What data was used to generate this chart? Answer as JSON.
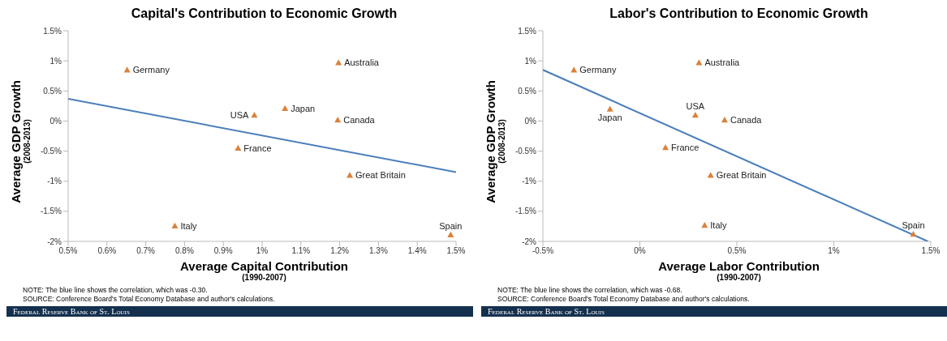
{
  "chart_data": [
    {
      "type": "scatter",
      "title": "Capital's Contribution to Economic Growth",
      "xlabel": "Average Capital Contribution\n(1990-2007)",
      "ylabel": "Average GDP Growth\n(2008-2013)",
      "xlim": [
        0.5,
        1.5
      ],
      "xticks": [
        {
          "value": 0.5,
          "label": "0.5%"
        },
        {
          "value": 0.6,
          "label": "0.6%"
        },
        {
          "value": 0.7,
          "label": "0.7%"
        },
        {
          "value": 0.8,
          "label": "0.8%"
        },
        {
          "value": 0.9,
          "label": "0.9%"
        },
        {
          "value": 1,
          "label": "1%"
        },
        {
          "value": 1.1,
          "label": "1.1%"
        },
        {
          "value": 1.2,
          "label": "1.2%"
        },
        {
          "value": 1.3,
          "label": "1.3%"
        },
        {
          "value": 1.4,
          "label": "1.4%"
        },
        {
          "value": 1.5,
          "label": "1.5%"
        }
      ],
      "ylim": [
        -2,
        1.5
      ],
      "yticks": [
        {
          "value": -2,
          "label": "-2%"
        },
        {
          "value": -1.5,
          "label": "-1.5%"
        },
        {
          "value": -1,
          "label": "-1%"
        },
        {
          "value": -0.5,
          "label": "-0.5%"
        },
        {
          "value": 0,
          "label": "0%"
        },
        {
          "value": 0.5,
          "label": "0.5%"
        },
        {
          "value": 1,
          "label": "1%"
        },
        {
          "value": 1.5,
          "label": "1.5%"
        }
      ],
      "grid": false,
      "legend": false,
      "marker": "triangle",
      "series": [
        {
          "type": "scatter",
          "color": "#d9823b",
          "x": [
            0.652,
            1.197,
            0.98,
            1.059,
            1.195,
            0.938,
            1.226,
            0.775,
            1.486
          ],
          "values": [
            0.85,
            0.97,
            0.1,
            0.21,
            0.02,
            -0.45,
            -0.9,
            -1.74,
            -1.89
          ]
        },
        {
          "type": "line",
          "color": "#4a7ebb",
          "marker": "none",
          "x": [
            0.5,
            1.5
          ],
          "values": [
            0.37,
            -0.85
          ]
        }
      ],
      "annotations": [
        {
          "text": "Germany",
          "x": 0.652,
          "y": 0.85
        },
        {
          "text": "Australia",
          "x": 1.197,
          "y": 0.97
        },
        {
          "text": "USA",
          "x": 0.98,
          "y": 0.1
        },
        {
          "text": "Japan",
          "x": 1.059,
          "y": 0.21
        },
        {
          "text": "Canada",
          "x": 1.195,
          "y": 0.02
        },
        {
          "text": "France",
          "x": 0.938,
          "y": -0.45
        },
        {
          "text": "Great Britain",
          "x": 1.226,
          "y": -0.9
        },
        {
          "text": "Italy",
          "x": 0.775,
          "y": -1.74
        },
        {
          "text": "Spain",
          "x": 1.486,
          "y": -1.89
        },
        "NOTE: The blue line shows the correlation, which was -0.30.",
        "SOURCE: Conference Board's Total Economy Database and author's calculations.",
        "Federal Reserve Bank of St. Louis"
      ]
    },
    {
      "type": "scatter",
      "title": "Labor's Contribution to Economic Growth",
      "xlabel": "Average Labor Contribution\n(1990-2007)",
      "ylabel": "Average GDP Growth\n(2008-2013)",
      "xlim": [
        -0.5,
        1.5
      ],
      "xticks": [
        {
          "value": -0.5,
          "label": "-0.5%"
        },
        {
          "value": 0,
          "label": "0%"
        },
        {
          "value": 0.5,
          "label": "0.5%"
        },
        {
          "value": 1,
          "label": "1%"
        },
        {
          "value": 1.5,
          "label": "1.5%"
        }
      ],
      "ylim": [
        -2,
        1.5
      ],
      "yticks": [
        {
          "value": -2,
          "label": "-2%"
        },
        {
          "value": -1.5,
          "label": "-1.5%"
        },
        {
          "value": -1,
          "label": "-1%"
        },
        {
          "value": -0.5,
          "label": "-0.5%"
        },
        {
          "value": 0,
          "label": "0%"
        },
        {
          "value": 0.5,
          "label": "0.5%"
        },
        {
          "value": 1,
          "label": "1%"
        },
        {
          "value": 1.5,
          "label": "1.5%"
        }
      ],
      "grid": false,
      "legend": false,
      "marker": "triangle",
      "series": [
        {
          "type": "scatter",
          "color": "#d9823b",
          "x": [
            -0.34,
            0.305,
            0.286,
            -0.154,
            0.437,
            0.132,
            0.365,
            0.334,
            1.41
          ],
          "values": [
            0.85,
            0.97,
            0.1,
            0.2,
            0.02,
            -0.44,
            -0.9,
            -1.73,
            -1.88
          ]
        },
        {
          "type": "line",
          "color": "#4a7ebb",
          "marker": "none",
          "x": [
            -0.5,
            1.485
          ],
          "values": [
            0.85,
            -2
          ]
        }
      ],
      "annotations": [
        {
          "text": "Germany",
          "x": -0.34,
          "y": 0.85
        },
        {
          "text": "Australia",
          "x": 0.305,
          "y": 0.97
        },
        {
          "text": "USA",
          "x": 0.286,
          "y": 0.1
        },
        {
          "text": "Japan",
          "x": -0.154,
          "y": 0.2
        },
        {
          "text": "Canada",
          "x": 0.437,
          "y": 0.02
        },
        {
          "text": "France",
          "x": 0.132,
          "y": -0.44
        },
        {
          "text": "Great Britain",
          "x": 0.365,
          "y": -0.9
        },
        {
          "text": "Italy",
          "x": 0.334,
          "y": -1.73
        },
        {
          "text": "Spain",
          "x": 1.41,
          "y": -1.88
        },
        "NOTE: The blue line shows the correlation, which was -0.68.",
        "SOURCE: Conference Board's Total Economy Database and author's calculations.",
        "Federal Reserve Bank of St. Louis"
      ]
    }
  ]
}
